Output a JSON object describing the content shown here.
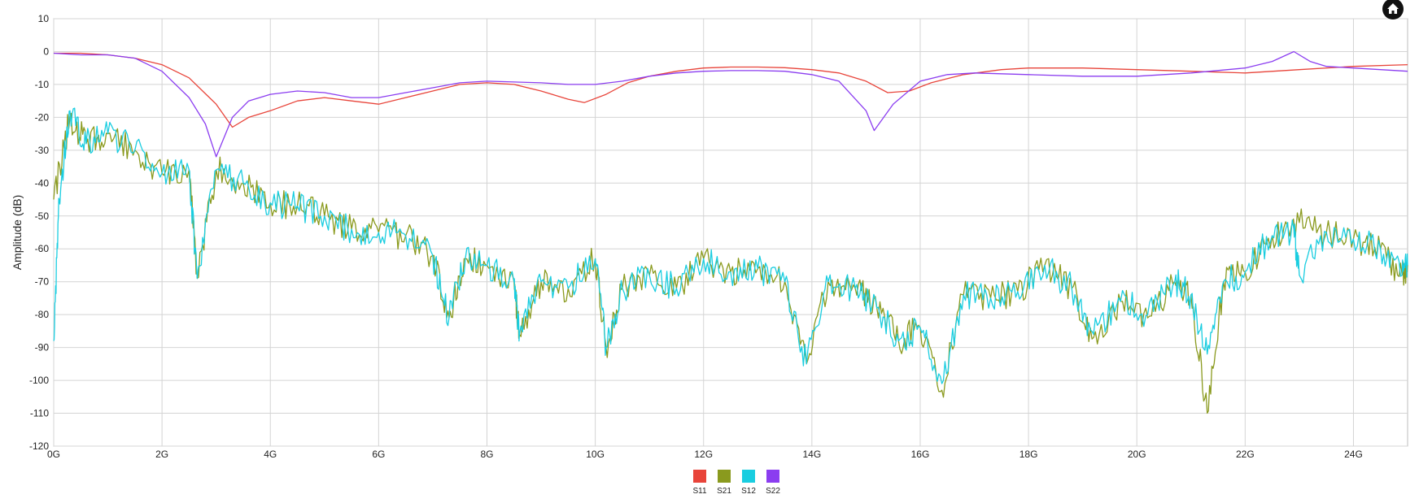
{
  "home_button": {
    "icon": "home-icon"
  },
  "chart_data": {
    "type": "line",
    "title": "",
    "xlabel": "",
    "ylabel": "Amplitude (dB)",
    "xlim": [
      0,
      25
    ],
    "ylim": [
      -120,
      10
    ],
    "xticks": [
      0,
      2,
      4,
      6,
      8,
      10,
      12,
      14,
      16,
      18,
      20,
      22,
      24
    ],
    "xtick_labels": [
      "0G",
      "2G",
      "4G",
      "6G",
      "8G",
      "10G",
      "12G",
      "14G",
      "16G",
      "18G",
      "20G",
      "22G",
      "24G"
    ],
    "yticks": [
      10,
      0,
      -10,
      -20,
      -30,
      -40,
      -50,
      -60,
      -70,
      -80,
      -90,
      -100,
      -110,
      -120
    ],
    "grid": true,
    "legend_position": "bottom-center",
    "series": [
      {
        "name": "S11",
        "color": "#e8443a",
        "x": [
          0,
          0.5,
          1.0,
          1.5,
          2.0,
          2.5,
          3.0,
          3.3,
          3.6,
          4.0,
          4.5,
          5.0,
          5.5,
          6.0,
          6.5,
          7.0,
          7.5,
          8.0,
          8.5,
          9.0,
          9.5,
          9.8,
          10.2,
          10.6,
          11.0,
          11.5,
          12.0,
          12.5,
          13.0,
          13.5,
          14.0,
          14.5,
          15.0,
          15.4,
          15.8,
          16.2,
          16.8,
          17.5,
          18.0,
          19.0,
          20.0,
          21.0,
          22.0,
          23.0,
          24.0,
          25.0
        ],
        "y": [
          -0.5,
          -0.5,
          -1,
          -2,
          -4,
          -8,
          -16,
          -23,
          -20,
          -18,
          -15,
          -14,
          -15,
          -16,
          -14,
          -12,
          -10,
          -9.5,
          -10,
          -12,
          -14.5,
          -15.5,
          -13,
          -9.5,
          -7.5,
          -6,
          -5,
          -4.7,
          -4.7,
          -4.9,
          -5.5,
          -6.5,
          -9,
          -12.5,
          -12,
          -9.5,
          -7,
          -5.5,
          -5,
          -5,
          -5.5,
          -6,
          -6.5,
          -5.5,
          -4.5,
          -4
        ]
      },
      {
        "name": "S21",
        "color": "#8a9a1e",
        "x": [
          0,
          0.3,
          0.6,
          1.0,
          1.5,
          2.0,
          2.5,
          2.65,
          3.0,
          3.5,
          4.0,
          4.5,
          5.0,
          5.5,
          6.0,
          6.5,
          7.0,
          7.3,
          7.6,
          8.0,
          8.5,
          8.6,
          9.0,
          9.5,
          10.0,
          10.2,
          10.5,
          11.0,
          11.5,
          12.0,
          12.5,
          13.0,
          13.5,
          13.9,
          14.3,
          14.8,
          15.2,
          15.6,
          16.0,
          16.4,
          16.8,
          17.3,
          17.8,
          18.3,
          18.8,
          19.2,
          19.7,
          20.2,
          20.7,
          21.0,
          21.3,
          21.6,
          22.0,
          22.5,
          23.0,
          23.5,
          24.0,
          24.5,
          24.9,
          25.0
        ],
        "y": [
          -45,
          -20,
          -28,
          -25,
          -30,
          -37,
          -36,
          -69,
          -36,
          -40,
          -46,
          -47,
          -50,
          -54,
          -55,
          -56,
          -62,
          -81,
          -63,
          -65,
          -70,
          -86,
          -70,
          -72,
          -63,
          -90,
          -72,
          -68,
          -72,
          -63,
          -67,
          -66,
          -70,
          -95,
          -70,
          -72,
          -78,
          -88,
          -84,
          -103,
          -74,
          -75,
          -73,
          -65,
          -72,
          -87,
          -76,
          -81,
          -70,
          -74,
          -110,
          -70,
          -67,
          -56,
          -52,
          -55,
          -57,
          -60,
          -68,
          -65
        ]
      },
      {
        "name": "S12",
        "color": "#19cde0",
        "x": [
          0,
          0.1,
          0.3,
          0.6,
          1.0,
          1.5,
          2.0,
          2.5,
          2.65,
          3.0,
          3.5,
          4.0,
          4.5,
          5.0,
          5.5,
          6.0,
          6.5,
          7.0,
          7.3,
          7.6,
          8.0,
          8.5,
          8.6,
          9.0,
          9.5,
          10.0,
          10.2,
          10.5,
          11.0,
          11.5,
          12.0,
          12.5,
          13.0,
          13.5,
          13.9,
          14.3,
          14.8,
          15.2,
          15.6,
          16.0,
          16.4,
          16.8,
          17.3,
          17.8,
          18.3,
          18.8,
          19.2,
          19.7,
          20.2,
          20.7,
          21.0,
          21.3,
          21.6,
          22.0,
          22.5,
          22.9,
          23.0,
          23.5,
          24.0,
          24.5,
          24.9,
          25.0
        ],
        "y": [
          -88,
          -45,
          -18,
          -28,
          -25,
          -30,
          -37,
          -36,
          -69,
          -36,
          -40,
          -46,
          -47,
          -50,
          -54,
          -55,
          -56,
          -62,
          -81,
          -63,
          -65,
          -70,
          -86,
          -70,
          -72,
          -63,
          -90,
          -72,
          -68,
          -72,
          -63,
          -67,
          -66,
          -70,
          -95,
          -70,
          -72,
          -78,
          -88,
          -84,
          -101,
          -74,
          -75,
          -73,
          -65,
          -72,
          -86,
          -76,
          -80,
          -70,
          -74,
          -92,
          -70,
          -67,
          -56,
          -54,
          -68,
          -55,
          -57,
          -60,
          -68,
          -65
        ]
      },
      {
        "name": "S22",
        "color": "#8b3df0",
        "x": [
          0,
          0.5,
          1.0,
          1.5,
          2.0,
          2.5,
          2.8,
          3.0,
          3.3,
          3.6,
          4.0,
          4.5,
          5.0,
          5.5,
          6.0,
          6.5,
          7.0,
          7.5,
          8.0,
          9.0,
          9.5,
          10.0,
          10.5,
          11.0,
          11.5,
          12.0,
          12.5,
          13.0,
          13.5,
          14.0,
          14.5,
          15.0,
          15.15,
          15.5,
          16.0,
          16.5,
          17.0,
          18.0,
          19.0,
          20.0,
          21.0,
          22.0,
          22.5,
          22.9,
          23.2,
          23.5,
          24.0,
          24.5,
          25.0
        ],
        "y": [
          -0.5,
          -1,
          -1,
          -2,
          -6,
          -14,
          -22,
          -32,
          -20,
          -15,
          -13,
          -12,
          -12.5,
          -14,
          -14,
          -12.5,
          -11,
          -9.5,
          -9,
          -9.5,
          -10,
          -10,
          -9,
          -7.5,
          -6.5,
          -6,
          -5.8,
          -5.8,
          -6,
          -7,
          -9,
          -18,
          -24,
          -16,
          -9,
          -7,
          -6.5,
          -7,
          -7.5,
          -7.5,
          -6.5,
          -5,
          -3,
          0,
          -3,
          -4.5,
          -5,
          -5.5,
          -6
        ]
      }
    ]
  }
}
